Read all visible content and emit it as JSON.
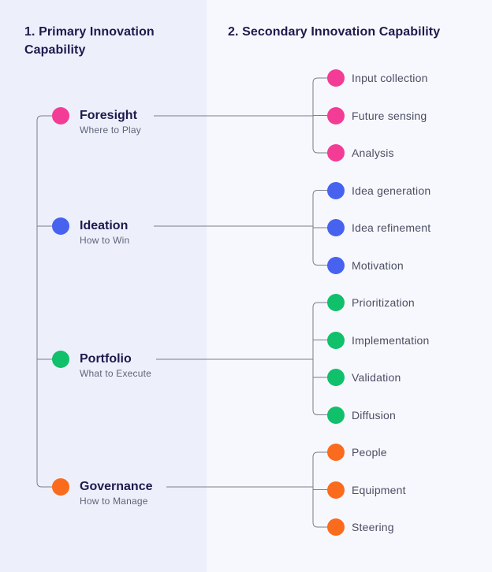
{
  "colors": {
    "foresight": "#f23c96",
    "ideation": "#4862f0",
    "portfolio": "#10c06a",
    "governance": "#fb6b1e",
    "line": "#7a7d8c"
  },
  "headers": {
    "primary": "1. Primary Innovation Capability",
    "secondary": "2. Secondary Innovation Capability"
  },
  "groups": [
    {
      "key": "foresight",
      "name": "Foresight",
      "subtitle": "Where to Play",
      "children": [
        "Input collection",
        "Future sensing",
        "Analysis"
      ]
    },
    {
      "key": "ideation",
      "name": "Ideation",
      "subtitle": "How to Win",
      "children": [
        "Idea generation",
        "Idea refinement",
        "Motivation"
      ]
    },
    {
      "key": "portfolio",
      "name": "Portfolio",
      "subtitle": "What to Execute",
      "children": [
        "Prioritization",
        "Implementation",
        "Validation",
        "Diffusion"
      ]
    },
    {
      "key": "governance",
      "name": "Governance",
      "subtitle": "How to Manage",
      "children": [
        "People",
        "Equipment",
        "Steering"
      ]
    }
  ]
}
